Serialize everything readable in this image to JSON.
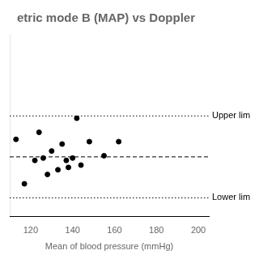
{
  "chart_data": {
    "type": "scatter",
    "title": "etric mode B (MAP) vs Doppler",
    "xlabel": "Mean of blood pressure (mmHg)",
    "x": [
      113,
      117,
      122,
      124,
      126,
      128,
      130,
      133,
      135,
      137,
      138,
      140,
      142,
      144,
      148,
      155,
      162
    ],
    "values": [
      5,
      -14,
      -4,
      8,
      -3,
      -10,
      0,
      -8,
      3,
      -4,
      -7,
      -3,
      14,
      -6,
      4,
      -2,
      4
    ],
    "color": "#000000",
    "xlim": [
      110,
      205
    ],
    "xticks": [
      120,
      140,
      160,
      180,
      200
    ],
    "ylim": [
      -28,
      50
    ],
    "lines": [
      {
        "value": 15.0,
        "label": "Upper lim",
        "line_style": "dotted",
        "color": "#000000"
      },
      {
        "value": -2.5,
        "line_style": "dashed",
        "color": "#000000"
      },
      {
        "value": -20.0,
        "label": "Lower lim",
        "line_style": "dotted",
        "color": "#000000"
      }
    ],
    "grid": false,
    "tick_labels": "x"
  }
}
